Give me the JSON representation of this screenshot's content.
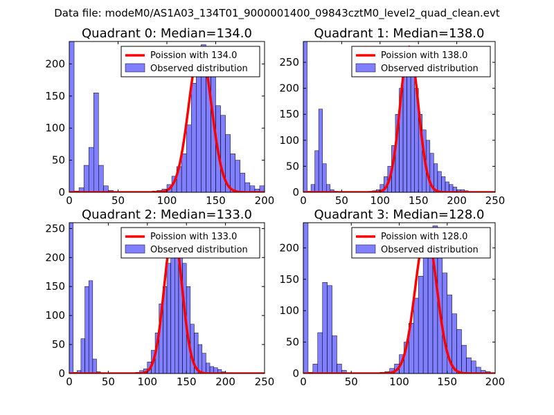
{
  "figure": {
    "suptitle": "Data file: modeM0/AS1A03_134T01_9000001400_09843cztM0_level2_quad_clean.evt"
  },
  "chart_data": [
    {
      "type": "bar",
      "title": "Quadrant 0: Median=134.0",
      "xlim": [
        0,
        200
      ],
      "ylim": [
        0,
        235
      ],
      "xticks": [
        0,
        50,
        100,
        150,
        200
      ],
      "yticks": [
        0,
        50,
        100,
        150,
        200
      ],
      "bin_width": 5,
      "bin_starts": [
        0,
        5,
        10,
        15,
        20,
        25,
        30,
        35,
        40,
        45,
        50,
        55,
        60,
        65,
        70,
        75,
        80,
        85,
        90,
        95,
        100,
        105,
        110,
        115,
        120,
        125,
        130,
        135,
        140,
        145,
        150,
        155,
        160,
        165,
        170,
        175,
        180,
        185,
        190,
        195
      ],
      "values": [
        235,
        2,
        7,
        42,
        70,
        155,
        42,
        10,
        3,
        1,
        1,
        0,
        0,
        0,
        0,
        1,
        1,
        2,
        3,
        5,
        12,
        25,
        40,
        60,
        105,
        170,
        205,
        230,
        180,
        180,
        135,
        120,
        90,
        60,
        50,
        30,
        15,
        10,
        5,
        10
      ],
      "poisson_mean": 134.0,
      "poisson_peak": 225,
      "legend": [
        "Poission with 134.0",
        "Observed distribution"
      ]
    },
    {
      "type": "bar",
      "title": "Quadrant 1: Median=138.0",
      "xlim": [
        0,
        250
      ],
      "ylim": [
        0,
        290
      ],
      "xticks": [
        0,
        50,
        100,
        150,
        200,
        250
      ],
      "yticks": [
        0,
        50,
        100,
        150,
        200,
        250
      ],
      "bin_width": 5,
      "bin_starts": [
        0,
        5,
        10,
        15,
        20,
        25,
        30,
        35,
        40,
        45,
        50,
        55,
        60,
        65,
        70,
        75,
        80,
        85,
        90,
        95,
        100,
        105,
        110,
        115,
        120,
        125,
        130,
        135,
        140,
        145,
        150,
        155,
        160,
        165,
        170,
        175,
        180,
        185,
        190,
        195,
        200,
        205,
        210,
        215,
        220
      ],
      "values": [
        290,
        2,
        15,
        80,
        160,
        55,
        15,
        5,
        2,
        1,
        0,
        0,
        0,
        0,
        0,
        0,
        1,
        2,
        3,
        5,
        15,
        30,
        50,
        90,
        150,
        200,
        240,
        275,
        250,
        200,
        150,
        120,
        100,
        75,
        55,
        40,
        30,
        20,
        15,
        10,
        5,
        5,
        3,
        1,
        1
      ],
      "poisson_mean": 138.0,
      "poisson_peak": 280,
      "legend": [
        "Poission with 138.0",
        "Observed distribution"
      ]
    },
    {
      "type": "bar",
      "title": "Quadrant 2: Median=133.0",
      "xlim": [
        0,
        250
      ],
      "ylim": [
        0,
        260
      ],
      "xticks": [
        0,
        50,
        100,
        150,
        200,
        250
      ],
      "yticks": [
        0,
        50,
        100,
        150,
        200,
        250
      ],
      "bin_width": 5,
      "bin_starts": [
        0,
        5,
        10,
        15,
        20,
        25,
        30,
        35,
        40,
        45,
        50,
        55,
        60,
        65,
        70,
        75,
        80,
        85,
        90,
        95,
        100,
        105,
        110,
        115,
        120,
        125,
        130,
        135,
        140,
        145,
        150,
        155,
        160,
        165,
        170,
        175,
        180,
        185,
        190,
        195,
        200
      ],
      "values": [
        260,
        2,
        5,
        60,
        150,
        160,
        25,
        3,
        1,
        0,
        0,
        0,
        0,
        0,
        0,
        0,
        1,
        2,
        5,
        8,
        20,
        40,
        70,
        120,
        150,
        190,
        210,
        245,
        205,
        190,
        150,
        85,
        70,
        50,
        35,
        18,
        12,
        10,
        7,
        3,
        1
      ],
      "poisson_mean": 133.0,
      "poisson_peak": 245,
      "legend": [
        "Poission with 133.0",
        "Observed distribution"
      ]
    },
    {
      "type": "bar",
      "title": "Quadrant 3: Median=128.0",
      "xlim": [
        0,
        200
      ],
      "ylim": [
        0,
        240
      ],
      "xticks": [
        0,
        50,
        100,
        150,
        200
      ],
      "yticks": [
        0,
        50,
        100,
        150,
        200
      ],
      "bin_width": 5,
      "bin_starts": [
        0,
        5,
        10,
        15,
        20,
        25,
        30,
        35,
        40,
        45,
        50,
        55,
        60,
        65,
        70,
        75,
        80,
        85,
        90,
        95,
        100,
        105,
        110,
        115,
        120,
        125,
        130,
        135,
        140,
        145,
        150,
        155,
        160,
        165,
        170,
        175,
        180,
        185,
        190
      ],
      "values": [
        240,
        2,
        15,
        65,
        145,
        140,
        60,
        15,
        5,
        1,
        0,
        0,
        0,
        0,
        0,
        1,
        2,
        3,
        8,
        15,
        30,
        50,
        80,
        120,
        155,
        185,
        205,
        235,
        205,
        160,
        125,
        95,
        70,
        45,
        25,
        20,
        10,
        5,
        3
      ],
      "poisson_mean": 128.0,
      "poisson_peak": 225,
      "legend": [
        "Poission with 128.0",
        "Observed distribution"
      ]
    }
  ]
}
